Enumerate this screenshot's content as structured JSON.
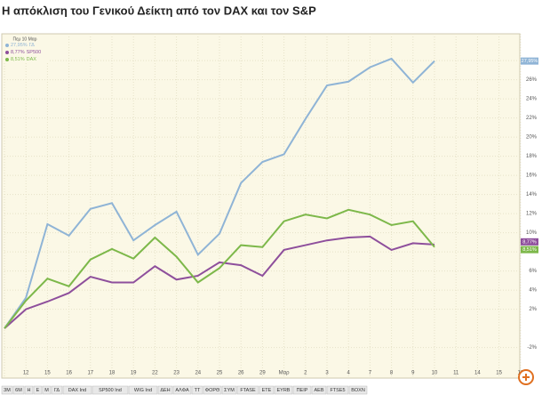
{
  "chart_data": {
    "type": "line",
    "title": "Η απόκλιση του Γενικού Δείκτη από τον DAX και τον S&P",
    "legend_title": "Πεμ 10 Μαρ",
    "categories": [
      null,
      "12",
      "15",
      "16",
      "17",
      "18",
      "19",
      "22",
      "23",
      "24",
      "25",
      "26",
      "29",
      "Μαρ",
      "2",
      "3",
      "4",
      "7",
      "8",
      "9",
      "10",
      "11",
      "14",
      "15",
      "16"
    ],
    "series": [
      {
        "name": "ΓΔ",
        "color": "#8fb4d6",
        "values": [
          0,
          3.2,
          10.9,
          9.7,
          12.5,
          13.1,
          9.2,
          10.8,
          12.2,
          7.7,
          9.9,
          15.2,
          17.4,
          18.2,
          21.9,
          25.4,
          25.8,
          27.3,
          28.2,
          25.7,
          27.95,
          null,
          null,
          null,
          null
        ],
        "value_labels": [
          null,
          null,
          null,
          null,
          null,
          null,
          null,
          null,
          null,
          null,
          null,
          null,
          null,
          null,
          null,
          null,
          null,
          null,
          null,
          null,
          "27,95%",
          null,
          null,
          null,
          null
        ]
      },
      {
        "name": "SP500",
        "color": "#8e4f9c",
        "values": [
          0,
          2.0,
          2.8,
          3.7,
          5.4,
          4.8,
          4.8,
          6.5,
          5.1,
          5.5,
          6.9,
          6.6,
          5.5,
          8.2,
          8.7,
          9.2,
          9.5,
          9.6,
          8.2,
          8.9,
          8.77,
          null,
          null,
          null,
          null
        ],
        "value_labels": [
          null,
          null,
          null,
          null,
          null,
          null,
          null,
          null,
          null,
          null,
          null,
          null,
          null,
          null,
          null,
          null,
          null,
          null,
          null,
          null,
          "8,77%",
          null,
          null,
          null,
          null
        ]
      },
      {
        "name": "DAX",
        "color": "#7db84a",
        "values": [
          0,
          2.9,
          5.2,
          4.4,
          7.2,
          8.3,
          7.3,
          9.5,
          7.5,
          4.8,
          6.3,
          8.7,
          8.5,
          11.2,
          11.9,
          11.5,
          12.4,
          11.9,
          10.8,
          11.2,
          8.51,
          null,
          null,
          null,
          null
        ],
        "value_labels": [
          null,
          null,
          null,
          null,
          null,
          null,
          null,
          null,
          null,
          null,
          null,
          null,
          null,
          null,
          null,
          null,
          null,
          null,
          null,
          null,
          "8,51%",
          null,
          null,
          null,
          null
        ]
      }
    ],
    "ylim": [
      -5.2,
      30.8
    ],
    "yticks": [
      {
        "value": -2,
        "label": "-2%"
      },
      {
        "value": 2,
        "label": "2%"
      },
      {
        "value": 4,
        "label": "4%"
      },
      {
        "value": 6,
        "label": "6%"
      },
      {
        "value": 8,
        "label": "8%"
      },
      {
        "value": 10,
        "label": "10%"
      },
      {
        "value": 12,
        "label": "12%"
      },
      {
        "value": 14,
        "label": "14%"
      },
      {
        "value": 16,
        "label": "16%"
      },
      {
        "value": 18,
        "label": "18%"
      },
      {
        "value": 20,
        "label": "20%"
      },
      {
        "value": 22,
        "label": "22%"
      },
      {
        "value": 24,
        "label": "24%"
      },
      {
        "value": 26,
        "label": "26%"
      },
      {
        "value": 28,
        "label": "28%"
      }
    ],
    "grid": true
  },
  "toolbar": [
    "3Μ",
    "6Μ",
    "Η",
    "Ε",
    "Μ",
    "ΓΔ",
    "DAX Ind",
    "SP500 Ind",
    "WIG Ind",
    "ΔΕΗ",
    "ΑΛΦΑ",
    "ΤΤ",
    "ΦΟΡΘ",
    "ΣΥΜ",
    "FTASE",
    "ΕΤΕ",
    "EYRB",
    "ΠΕΙΡ",
    "ΑΕΒ",
    "FTSE5",
    "ΒΟΧΝ"
  ]
}
